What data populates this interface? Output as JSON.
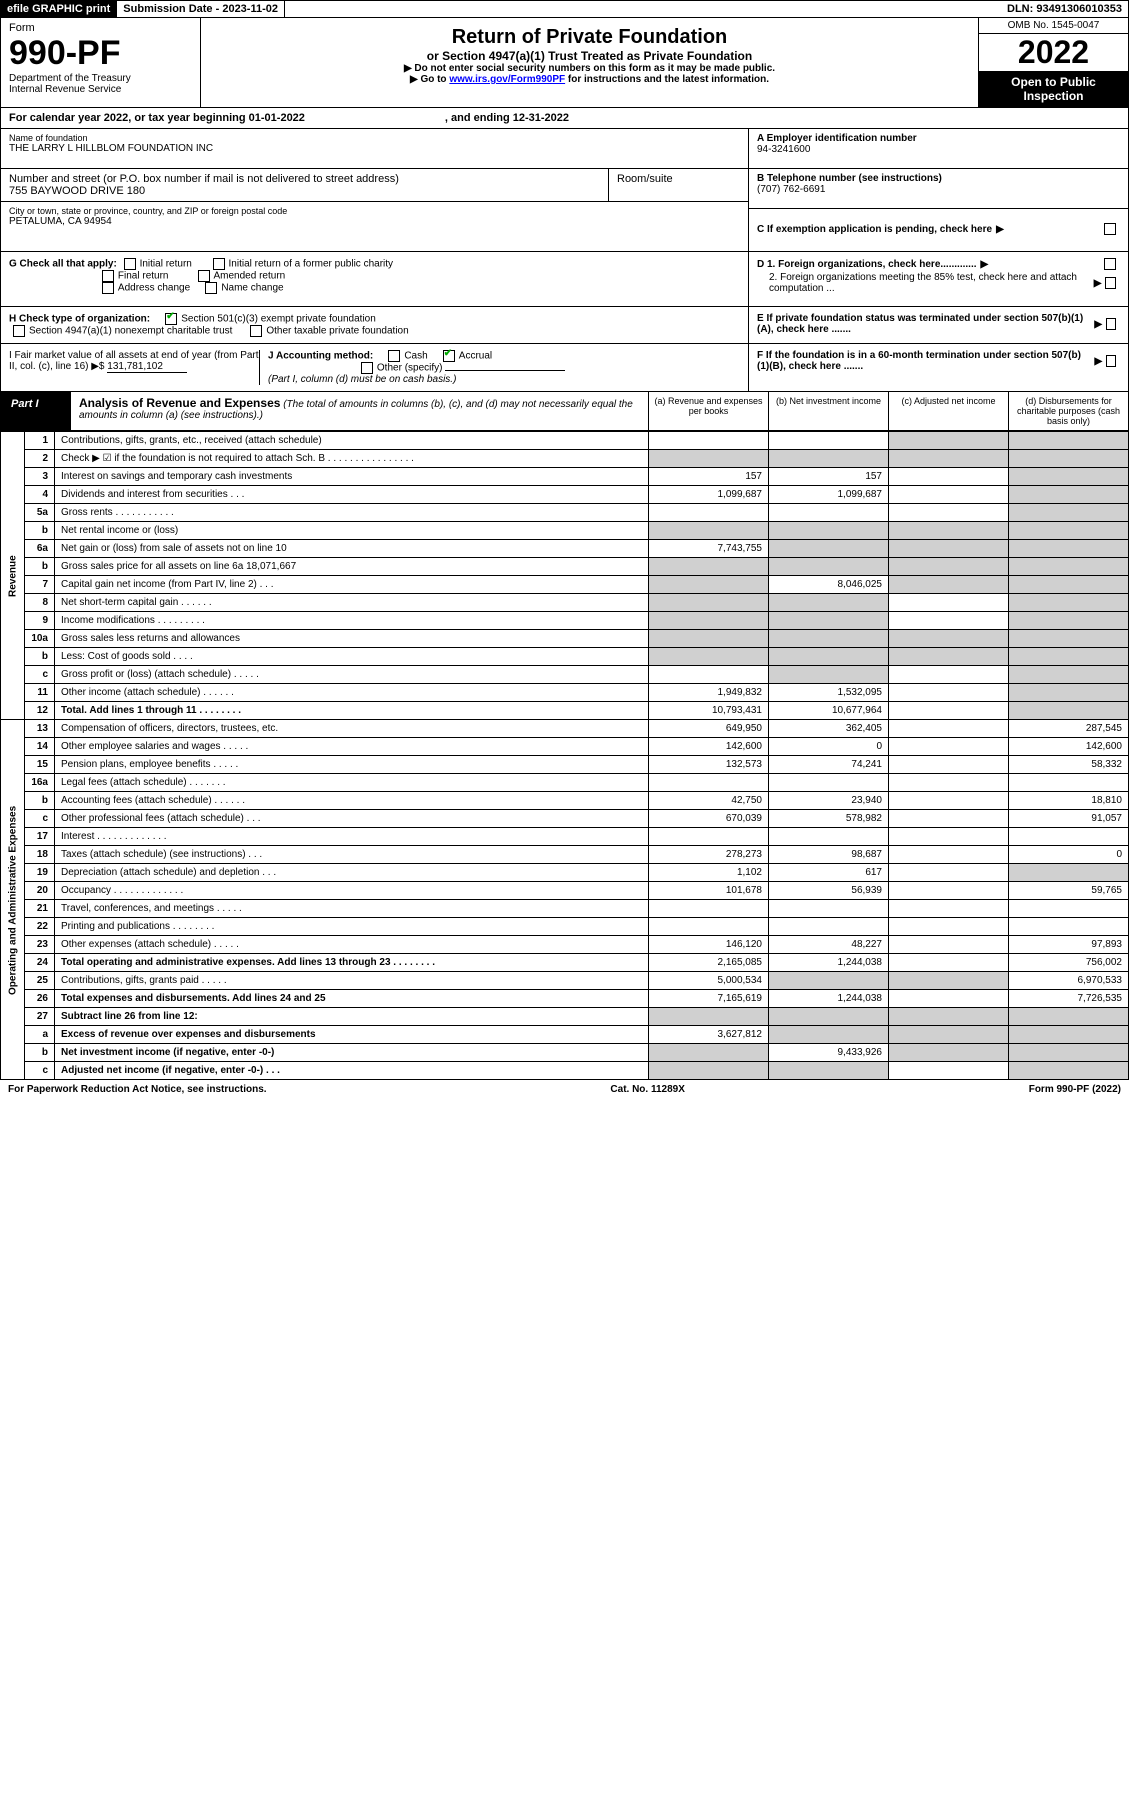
{
  "top": {
    "efile": "efile GRAPHIC print",
    "sub_date_lbl": "Submission Date - ",
    "sub_date": "2023-11-02",
    "dln_lbl": "DLN: ",
    "dln": "93491306010353"
  },
  "header": {
    "form_word": "Form",
    "form_num": "990-PF",
    "dept": "Department of the Treasury",
    "irs": "Internal Revenue Service",
    "title": "Return of Private Foundation",
    "subtitle": "or Section 4947(a)(1) Trust Treated as Private Foundation",
    "note1": "▶ Do not enter social security numbers on this form as it may be made public.",
    "note2_a": "▶ Go to ",
    "note2_link": "www.irs.gov/Form990PF",
    "note2_b": " for instructions and the latest information.",
    "omb": "OMB No. 1545-0047",
    "year": "2022",
    "open": "Open to Public Inspection"
  },
  "cal": {
    "text": "For calendar year 2022, or tax year beginning 01-01-2022",
    "end": ", and ending 12-31-2022"
  },
  "entity": {
    "name_lbl": "Name of foundation",
    "name": "THE LARRY L HILLBLOM FOUNDATION INC",
    "addr_lbl": "Number and street (or P.O. box number if mail is not delivered to street address)",
    "addr": "755 BAYWOOD DRIVE 180",
    "room_lbl": "Room/suite",
    "city_lbl": "City or town, state or province, country, and ZIP or foreign postal code",
    "city": "PETALUMA, CA  94954",
    "ein_lbl": "A Employer identification number",
    "ein": "94-3241600",
    "tel_lbl": "B Telephone number (see instructions)",
    "tel": "(707) 762-6691",
    "c_lbl": "C If exemption application is pending, check here",
    "d1": "D 1. Foreign organizations, check here.............",
    "d2": "2. Foreign organizations meeting the 85% test, check here and attach computation ...",
    "e": "E  If private foundation status was terminated under section 507(b)(1)(A), check here .......",
    "f": "F  If the foundation is in a 60-month termination under section 507(b)(1)(B), check here ......."
  },
  "checks": {
    "g_lbl": "G Check all that apply:",
    "g_initial": "Initial return",
    "g_initial_former": "Initial return of a former public charity",
    "g_final": "Final return",
    "g_amended": "Amended return",
    "g_addr": "Address change",
    "g_name": "Name change",
    "h_lbl": "H Check type of organization:",
    "h_501c3": "Section 501(c)(3) exempt private foundation",
    "h_4947": "Section 4947(a)(1) nonexempt charitable trust",
    "h_other": "Other taxable private foundation",
    "i_lbl": "I Fair market value of all assets at end of year (from Part II, col. (c), line 16) ▶$",
    "i_val": "131,781,102",
    "j_lbl": "J Accounting method:",
    "j_cash": "Cash",
    "j_accrual": "Accrual",
    "j_other": "Other (specify)",
    "j_note": "(Part I, column (d) must be on cash basis.)"
  },
  "part1": {
    "lbl": "Part I",
    "title": "Analysis of Revenue and Expenses",
    "note": "(The total of amounts in columns (b), (c), and (d) may not necessarily equal the amounts in column (a) (see instructions).)",
    "col_a": "(a)   Revenue and expenses per books",
    "col_b": "(b)   Net investment income",
    "col_c": "(c)   Adjusted net income",
    "col_d": "(d)   Disbursements for charitable purposes (cash basis only)"
  },
  "sides": {
    "rev": "Revenue",
    "exp": "Operating and Administrative Expenses"
  },
  "rows": [
    {
      "n": "1",
      "d": "Contributions, gifts, grants, etc., received (attach schedule)",
      "a": "",
      "b": "",
      "c": "g",
      "dd": "g"
    },
    {
      "n": "2",
      "d": "Check ▶ ☑ if the foundation is not required to attach Sch. B   . . . . . . . . . . . . . . . .",
      "a": "g",
      "b": "g",
      "c": "g",
      "dd": "g"
    },
    {
      "n": "3",
      "d": "Interest on savings and temporary cash investments",
      "a": "157",
      "b": "157",
      "c": "",
      "dd": "g"
    },
    {
      "n": "4",
      "d": "Dividends and interest from securities   . . .",
      "a": "1,099,687",
      "b": "1,099,687",
      "c": "",
      "dd": "g"
    },
    {
      "n": "5a",
      "d": "Gross rents   . . . . . . . . . . .",
      "a": "",
      "b": "",
      "c": "",
      "dd": "g"
    },
    {
      "n": "b",
      "d": "Net rental income or (loss)  ",
      "a": "g",
      "b": "g",
      "c": "g",
      "dd": "g"
    },
    {
      "n": "6a",
      "d": "Net gain or (loss) from sale of assets not on line 10",
      "a": "7,743,755",
      "b": "g",
      "c": "g",
      "dd": "g"
    },
    {
      "n": "b",
      "d": "Gross sales price for all assets on line 6a                18,071,667",
      "a": "g",
      "b": "g",
      "c": "g",
      "dd": "g"
    },
    {
      "n": "7",
      "d": "Capital gain net income (from Part IV, line 2)   . . .",
      "a": "g",
      "b": "8,046,025",
      "c": "g",
      "dd": "g"
    },
    {
      "n": "8",
      "d": "Net short-term capital gain  . . . . . .",
      "a": "g",
      "b": "g",
      "c": "",
      "dd": "g"
    },
    {
      "n": "9",
      "d": "Income modifications . . . . . . . . .",
      "a": "g",
      "b": "g",
      "c": "",
      "dd": "g"
    },
    {
      "n": "10a",
      "d": "Gross sales less returns and allowances",
      "a": "g",
      "b": "g",
      "c": "g",
      "dd": "g"
    },
    {
      "n": "b",
      "d": "Less: Cost of goods sold   . . . .",
      "a": "g",
      "b": "g",
      "c": "g",
      "dd": "g"
    },
    {
      "n": "c",
      "d": "Gross profit or (loss) (attach schedule)   . . . . .",
      "a": "",
      "b": "g",
      "c": "",
      "dd": "g"
    },
    {
      "n": "11",
      "d": "Other income (attach schedule)   . . . . . .",
      "a": "1,949,832",
      "b": "1,532,095",
      "c": "",
      "dd": "g"
    },
    {
      "n": "12",
      "d": "Total. Add lines 1 through 11   . . . . . . . .",
      "a": "10,793,431",
      "b": "10,677,964",
      "c": "",
      "dd": "g",
      "bold": true
    },
    {
      "n": "13",
      "d": "Compensation of officers, directors, trustees, etc.",
      "a": "649,950",
      "b": "362,405",
      "c": "",
      "dd": "287,545"
    },
    {
      "n": "14",
      "d": "Other employee salaries and wages   . . . . .",
      "a": "142,600",
      "b": "0",
      "c": "",
      "dd": "142,600"
    },
    {
      "n": "15",
      "d": "Pension plans, employee benefits . . . . .",
      "a": "132,573",
      "b": "74,241",
      "c": "",
      "dd": "58,332"
    },
    {
      "n": "16a",
      "d": "Legal fees (attach schedule) . . . . . . .",
      "a": "",
      "b": "",
      "c": "",
      "dd": ""
    },
    {
      "n": "b",
      "d": "Accounting fees (attach schedule) . . . . . .",
      "a": "42,750",
      "b": "23,940",
      "c": "",
      "dd": "18,810"
    },
    {
      "n": "c",
      "d": "Other professional fees (attach schedule)   . . .",
      "a": "670,039",
      "b": "578,982",
      "c": "",
      "dd": "91,057"
    },
    {
      "n": "17",
      "d": "Interest   . . . . . . . . . . . . .",
      "a": "",
      "b": "",
      "c": "",
      "dd": ""
    },
    {
      "n": "18",
      "d": "Taxes (attach schedule) (see instructions)   . . .",
      "a": "278,273",
      "b": "98,687",
      "c": "",
      "dd": "0"
    },
    {
      "n": "19",
      "d": "Depreciation (attach schedule) and depletion   . . .",
      "a": "1,102",
      "b": "617",
      "c": "",
      "dd": "g"
    },
    {
      "n": "20",
      "d": "Occupancy . . . . . . . . . . . . .",
      "a": "101,678",
      "b": "56,939",
      "c": "",
      "dd": "59,765"
    },
    {
      "n": "21",
      "d": "Travel, conferences, and meetings . . . . .",
      "a": "",
      "b": "",
      "c": "",
      "dd": ""
    },
    {
      "n": "22",
      "d": "Printing and publications . . . . . . . .",
      "a": "",
      "b": "",
      "c": "",
      "dd": ""
    },
    {
      "n": "23",
      "d": "Other expenses (attach schedule) . . . . .",
      "a": "146,120",
      "b": "48,227",
      "c": "",
      "dd": "97,893"
    },
    {
      "n": "24",
      "d": "Total operating and administrative expenses. Add lines 13 through 23   . . . . . . . .",
      "a": "2,165,085",
      "b": "1,244,038",
      "c": "",
      "dd": "756,002",
      "bold": true
    },
    {
      "n": "25",
      "d": "Contributions, gifts, grants paid   . . . . .",
      "a": "5,000,534",
      "b": "g",
      "c": "g",
      "dd": "6,970,533"
    },
    {
      "n": "26",
      "d": "Total expenses and disbursements. Add lines 24 and 25",
      "a": "7,165,619",
      "b": "1,244,038",
      "c": "",
      "dd": "7,726,535",
      "bold": true
    },
    {
      "n": "27",
      "d": "Subtract line 26 from line 12:",
      "a": "g",
      "b": "g",
      "c": "g",
      "dd": "g",
      "bold": true
    },
    {
      "n": "a",
      "d": "Excess of revenue over expenses and disbursements",
      "a": "3,627,812",
      "b": "g",
      "c": "g",
      "dd": "g",
      "bold": true
    },
    {
      "n": "b",
      "d": "Net investment income (if negative, enter -0-)",
      "a": "g",
      "b": "9,433,926",
      "c": "g",
      "dd": "g",
      "bold": true
    },
    {
      "n": "c",
      "d": "Adjusted net income (if negative, enter -0-)   . . .",
      "a": "g",
      "b": "g",
      "c": "",
      "dd": "g",
      "bold": true
    }
  ],
  "footer": {
    "left": "For Paperwork Reduction Act Notice, see instructions.",
    "mid": "Cat. No. 11289X",
    "right": "Form 990-PF (2022)"
  }
}
